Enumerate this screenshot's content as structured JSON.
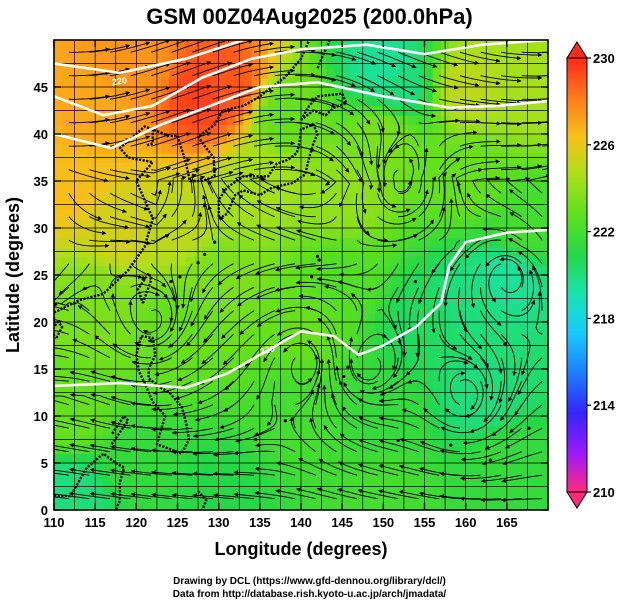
{
  "title": "GSM 00Z04Aug2025 (200.0hPa)",
  "x_axis": {
    "label": "Longitude (degrees)",
    "min": 110,
    "max": 170,
    "ticks": [
      110,
      115,
      120,
      125,
      130,
      135,
      140,
      145,
      150,
      155,
      160,
      165
    ]
  },
  "y_axis": {
    "label": "Latitude  (degrees)",
    "min": 0,
    "max": 50,
    "ticks": [
      0,
      5,
      10,
      15,
      20,
      25,
      30,
      35,
      40,
      45
    ]
  },
  "colorbar": {
    "min": 210,
    "max": 230,
    "labels": [
      "230",
      "226",
      "222",
      "218",
      "214",
      "210"
    ],
    "colors": [
      "#ff2a7a",
      "#9a1aff",
      "#3324ff",
      "#1d7dff",
      "#18c9ff",
      "#19e3b0",
      "#23d84a",
      "#5ae01e",
      "#a8e01a",
      "#f6c21a",
      "#ff7a1a",
      "#ff2a1a"
    ]
  },
  "temperature_field": [
    {
      "lon": 112,
      "lat": 35,
      "value": 226.5
    },
    {
      "lon": 115,
      "lat": 42,
      "value": 227
    },
    {
      "lon": 120,
      "lat": 47,
      "value": 227.5
    },
    {
      "lon": 128,
      "lat": 44,
      "value": 229.5
    },
    {
      "lon": 131,
      "lat": 45,
      "value": 229
    },
    {
      "lon": 125,
      "lat": 30,
      "value": 225
    },
    {
      "lon": 160,
      "lat": 45,
      "value": 225
    },
    {
      "lon": 150,
      "lat": 47,
      "value": 219.5
    },
    {
      "lon": 152,
      "lat": 45,
      "value": 220
    },
    {
      "lon": 138,
      "lat": 42,
      "value": 223
    },
    {
      "lon": 145,
      "lat": 33,
      "value": 224
    },
    {
      "lon": 135,
      "lat": 35,
      "value": 224.5
    },
    {
      "lon": 150,
      "lat": 40,
      "value": 223.5
    },
    {
      "lon": 160,
      "lat": 35,
      "value": 223
    },
    {
      "lon": 167,
      "lat": 30,
      "value": 222
    },
    {
      "lon": 160,
      "lat": 22,
      "value": 220
    },
    {
      "lon": 155,
      "lat": 20,
      "value": 220.5
    },
    {
      "lon": 165,
      "lat": 25,
      "value": 219.5
    },
    {
      "lon": 162,
      "lat": 12,
      "value": 220
    },
    {
      "lon": 150,
      "lat": 10,
      "value": 221.5
    },
    {
      "lon": 140,
      "lat": 10,
      "value": 222
    },
    {
      "lon": 140,
      "lat": 20,
      "value": 223
    },
    {
      "lon": 125,
      "lat": 20,
      "value": 223
    },
    {
      "lon": 130,
      "lat": 25,
      "value": 223.5
    },
    {
      "lon": 115,
      "lat": 22,
      "value": 223.5
    },
    {
      "lon": 112,
      "lat": 10,
      "value": 223
    },
    {
      "lon": 120,
      "lat": 5,
      "value": 221.5
    },
    {
      "lon": 112,
      "lat": 2,
      "value": 220
    },
    {
      "lon": 130,
      "lat": 2,
      "value": 221
    },
    {
      "lon": 150,
      "lat": 2,
      "value": 222
    },
    {
      "lon": 165,
      "lat": 5,
      "value": 221.5
    },
    {
      "lon": 145,
      "lat": 25,
      "value": 222.5
    },
    {
      "lon": 118,
      "lat": 30,
      "value": 225.5
    },
    {
      "lon": 168,
      "lat": 45,
      "value": 224.5
    }
  ],
  "contour_label": "220",
  "contour_lines": [
    [
      [
        110,
        47.5
      ],
      [
        118,
        46.5
      ],
      [
        126,
        48
      ],
      [
        133,
        50
      ]
    ],
    [
      [
        110,
        44
      ],
      [
        116,
        42
      ],
      [
        122,
        43
      ],
      [
        128,
        46
      ],
      [
        134,
        48
      ],
      [
        140,
        49
      ],
      [
        148,
        49.5
      ],
      [
        155,
        48.5
      ],
      [
        162,
        49.5
      ],
      [
        170,
        50
      ]
    ],
    [
      [
        110,
        40
      ],
      [
        117,
        38.5
      ],
      [
        123,
        41
      ],
      [
        129,
        43
      ],
      [
        135,
        45
      ],
      [
        142,
        45.5
      ],
      [
        150,
        44
      ],
      [
        158,
        42.8
      ],
      [
        164,
        43
      ],
      [
        170,
        43.5
      ]
    ],
    [
      [
        110,
        13.2
      ],
      [
        118,
        13.5
      ],
      [
        126,
        13
      ],
      [
        131,
        14.5
      ],
      [
        136,
        17
      ],
      [
        140,
        19
      ],
      [
        144,
        18.5
      ],
      [
        147,
        16.5
      ],
      [
        150,
        17.5
      ],
      [
        154,
        19.5
      ],
      [
        157,
        22
      ],
      [
        158,
        26
      ],
      [
        160,
        28.5
      ],
      [
        165,
        29.5
      ],
      [
        170,
        29.8
      ]
    ]
  ],
  "coastlines": [
    [
      [
        110,
        21
      ],
      [
        113,
        22.3
      ],
      [
        116,
        23
      ],
      [
        119,
        25.5
      ],
      [
        121,
        28
      ],
      [
        122,
        31
      ],
      [
        121,
        33
      ],
      [
        120,
        35
      ],
      [
        122,
        37
      ],
      [
        119,
        37.5
      ],
      [
        118,
        38.5
      ],
      [
        120,
        40
      ],
      [
        121,
        40.8
      ],
      [
        124,
        39.8
      ],
      [
        125,
        39.8
      ]
    ],
    [
      [
        125,
        39.8
      ],
      [
        126,
        37
      ],
      [
        126.5,
        35
      ],
      [
        128,
        35
      ],
      [
        129.5,
        35.5
      ],
      [
        129.4,
        37.5
      ],
      [
        128.5,
        38.5
      ],
      [
        127.5,
        39.7
      ],
      [
        129.5,
        41
      ],
      [
        130.5,
        42.5
      ],
      [
        133,
        43
      ],
      [
        135,
        44
      ],
      [
        138,
        46
      ],
      [
        140,
        48
      ],
      [
        141,
        50
      ]
    ],
    [
      [
        122,
        40.5
      ],
      [
        122,
        39
      ],
      [
        121.3,
        38.8
      ]
    ],
    [
      [
        130,
        31
      ],
      [
        131,
        31.5
      ],
      [
        132,
        33.5
      ],
      [
        133,
        34
      ],
      [
        135,
        33.5
      ],
      [
        136.5,
        34.3
      ],
      [
        139,
        34.8
      ],
      [
        140.5,
        35.7
      ],
      [
        141,
        37.5
      ],
      [
        141.5,
        39
      ],
      [
        142,
        40
      ],
      [
        141.5,
        41
      ],
      [
        140,
        40.5
      ],
      [
        139.8,
        39
      ],
      [
        139.5,
        38
      ],
      [
        138.5,
        37.3
      ],
      [
        137,
        36.8
      ],
      [
        136,
        35.5
      ],
      [
        133,
        35.5
      ],
      [
        131,
        34.3
      ],
      [
        130,
        33
      ],
      [
        130,
        31
      ]
    ],
    [
      [
        140,
        41.5
      ],
      [
        141,
        43
      ],
      [
        142,
        44
      ],
      [
        145,
        44.3
      ],
      [
        145.5,
        43.3
      ],
      [
        144,
        42.8
      ],
      [
        143,
        42
      ],
      [
        141.5,
        42.5
      ],
      [
        140,
        41.5
      ]
    ],
    [
      [
        120.8,
        22
      ],
      [
        121.8,
        24.5
      ],
      [
        121.5,
        25.2
      ],
      [
        120.2,
        23.5
      ],
      [
        120.8,
        22
      ]
    ],
    [
      [
        110.3,
        18.3
      ],
      [
        111,
        19.5
      ],
      [
        110.5,
        20
      ],
      [
        109.5,
        19
      ],
      [
        110.3,
        18.3
      ]
    ],
    [
      [
        120.6,
        18.5
      ],
      [
        122,
        18.3
      ],
      [
        122.3,
        16.5
      ],
      [
        121.5,
        15
      ],
      [
        121.5,
        14
      ],
      [
        123,
        13
      ],
      [
        124,
        12.5
      ],
      [
        125.5,
        11
      ],
      [
        126,
        9.5
      ],
      [
        126.4,
        7.5
      ],
      [
        125.5,
        6
      ],
      [
        124,
        6.5
      ],
      [
        122.5,
        7
      ],
      [
        123,
        8.5
      ],
      [
        123.5,
        10
      ],
      [
        122,
        11.5
      ],
      [
        121,
        13.5
      ],
      [
        120.3,
        14.8
      ],
      [
        120,
        16.5
      ],
      [
        120.6,
        18.5
      ]
    ],
    [
      [
        117,
        7
      ],
      [
        119,
        9.5
      ],
      [
        118.5,
        10
      ],
      [
        117,
        8
      ]
    ],
    [
      [
        110,
        1.5
      ],
      [
        112,
        1.5
      ],
      [
        114,
        4.5
      ],
      [
        116,
        6
      ],
      [
        117.5,
        5
      ],
      [
        118.5,
        4.5
      ],
      [
        118,
        3
      ],
      [
        118,
        1
      ],
      [
        117.5,
        0
      ]
    ],
    [
      [
        127.5,
        2
      ],
      [
        128.5,
        1
      ],
      [
        128,
        0
      ]
    ],
    [
      [
        142,
        47
      ],
      [
        143,
        49
      ],
      [
        143.5,
        50
      ]
    ]
  ],
  "islands": [
    [
      127.5,
      26.3
    ],
    [
      128.3,
      27.2
    ],
    [
      129.5,
      28.5
    ],
    [
      124.2,
      24.3
    ],
    [
      125.3,
      24.8
    ],
    [
      142,
      27
    ],
    [
      142.2,
      26.6
    ],
    [
      144.8,
      13.5
    ],
    [
      145.7,
      15.2
    ],
    [
      134.5,
      7.5
    ],
    [
      138.1,
      9.5
    ],
    [
      151.8,
      7.4
    ],
    [
      158.2,
      6.9
    ],
    [
      163,
      5.3
    ],
    [
      171,
      7.1
    ],
    [
      167.7,
      8.7
    ],
    [
      153.9,
      24.3
    ],
    [
      145.2,
      14.2
    ],
    [
      141.3,
      24.8
    ]
  ],
  "vortices": [
    {
      "lon": 152,
      "lat": 35,
      "sense": 1
    },
    {
      "lon": 140.5,
      "lat": 16,
      "sense": 1
    },
    {
      "lon": 148,
      "lat": 15,
      "sense": -1
    },
    {
      "lon": 165,
      "lat": 25,
      "sense": 1
    },
    {
      "lon": 160,
      "lat": 12,
      "sense": -1
    },
    {
      "lon": 122,
      "lat": 20,
      "sense": -1
    }
  ],
  "credits": {
    "line1": "Drawing by DCL (https://www.gfd-dennou.org/library/dcl/)",
    "line2": "Data from http://database.rish.kyoto-u.ac.jp/arch/jmadata/"
  }
}
